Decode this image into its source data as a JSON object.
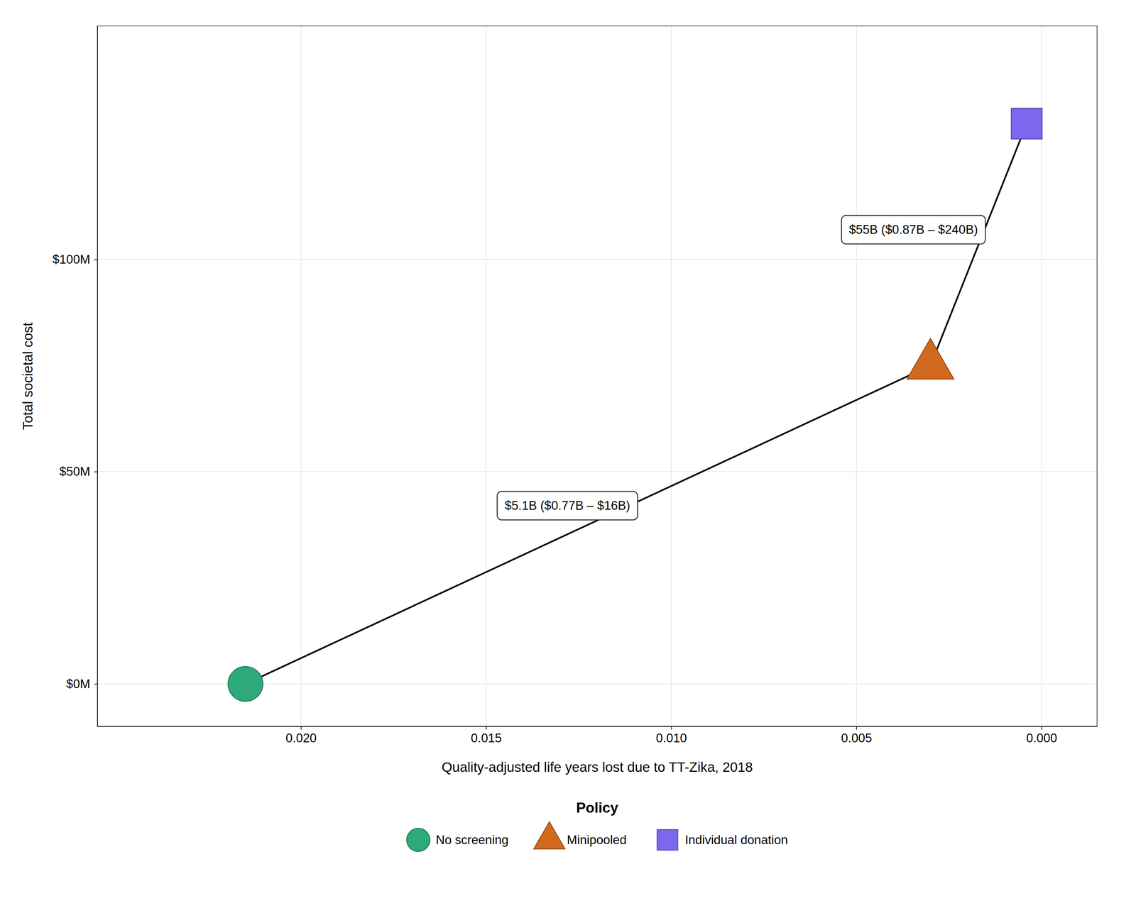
{
  "chart_data": {
    "type": "scatter",
    "x_label": "Quality-adjusted life years lost due to TT-Zika, 2018",
    "y_label": "Total societal cost",
    "color": "#000000",
    "line_style": "solid",
    "series": [
      {
        "name": "No screening",
        "type": "scatter",
        "color": "#2EAA7A",
        "marker": "circle",
        "x": [
          0.0215
        ],
        "values": [
          0
        ]
      },
      {
        "name": "Minipooled",
        "type": "scatter",
        "color": "#D2691E",
        "marker": "triangle",
        "x": [
          0.003
        ],
        "values": [
          75000000
        ]
      },
      {
        "name": "Individual donation",
        "type": "scatter",
        "color": "#7B68EE",
        "marker": "square",
        "x": [
          0.0004
        ],
        "values": [
          132000000
        ]
      }
    ],
    "annotations": [
      {
        "text": "$5.1B ($0.77B – $16B)",
        "x": 0.0145,
        "y": 42000000
      },
      {
        "text": "$55B ($0.87B – $240B)",
        "x": 0.0052,
        "y": 107000000
      }
    ],
    "xlim": [
      0.0255,
      -0.0015
    ],
    "ylim": [
      -10000000,
      155000000
    ],
    "xticks": [
      {
        "value": 0.02,
        "label": "0.020"
      },
      {
        "value": 0.015,
        "label": "0.015"
      },
      {
        "value": 0.01,
        "label": "0.010"
      },
      {
        "value": 0.005,
        "label": "0.005"
      },
      {
        "value": 0.0,
        "label": "0.000"
      }
    ],
    "yticks": [
      {
        "value": 0,
        "label": "$0M"
      },
      {
        "value": 50000000,
        "label": "$50M"
      },
      {
        "value": 100000000,
        "label": "$100M"
      }
    ],
    "grid": true,
    "legend": "bottom",
    "legend_title": "Policy"
  }
}
